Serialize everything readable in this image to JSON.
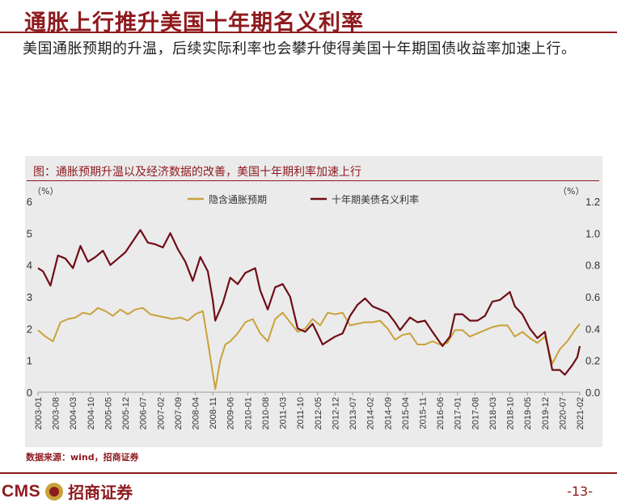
{
  "slide": {
    "title": "通胀上行推升美国十年期名义利率",
    "subtitle": "美国通胀预期的升温，后续实际利率也会攀升使得美国十年期国债收益率加速上行。",
    "source": "数据来源：wind，招商证券",
    "logo_text": "CMS",
    "logo_cn": "招商证券",
    "page_number": "-13-"
  },
  "colors": {
    "accent": "#8e1a1e",
    "breakeven": "#c9a23a",
    "yield": "#6e0d16",
    "panel": "#ebebeb"
  },
  "chart_data": {
    "type": "line",
    "title": "图：通胀预期升温以及经济数据的改善，美国十年期利率加速上行",
    "left_unit": "（%）",
    "right_unit": "（%）",
    "left_ylim": [
      0,
      6
    ],
    "right_ylim": [
      0,
      1.2
    ],
    "left_ticks": [
      "0",
      "1",
      "2",
      "3",
      "4",
      "5",
      "6"
    ],
    "right_ticks": [
      "0.0",
      "0.2",
      "0.4",
      "0.6",
      "0.8",
      "1.0",
      "1.2"
    ],
    "x_range": [
      "2003-01",
      "2021-02"
    ],
    "x_ticks": [
      "2003-01",
      "2003-08",
      "2004-03",
      "2004-10",
      "2005-05",
      "2005-12",
      "2006-07",
      "2007-02",
      "2007-09",
      "2008-04",
      "2008-11",
      "2009-06",
      "2010-01",
      "2010-08",
      "2011-03",
      "2011-10",
      "2012-05",
      "2012-12",
      "2013-07",
      "2014-02",
      "2014-09",
      "2015-04",
      "2015-11",
      "2016-06",
      "2017-01",
      "2017-08",
      "2018-03",
      "2018-10",
      "2019-05",
      "2019-12",
      "2020-07",
      "2021-02"
    ],
    "legend_position": "top",
    "series": [
      {
        "name": "隐含通胀预期",
        "axis": "left",
        "points": [
          [
            "2003-01",
            1.95
          ],
          [
            "2003-04",
            1.75
          ],
          [
            "2003-07",
            1.6
          ],
          [
            "2003-10",
            2.2
          ],
          [
            "2004-01",
            2.3
          ],
          [
            "2004-04",
            2.35
          ],
          [
            "2004-07",
            2.5
          ],
          [
            "2004-10",
            2.45
          ],
          [
            "2005-01",
            2.65
          ],
          [
            "2005-04",
            2.55
          ],
          [
            "2005-07",
            2.4
          ],
          [
            "2005-10",
            2.6
          ],
          [
            "2006-01",
            2.45
          ],
          [
            "2006-04",
            2.6
          ],
          [
            "2006-07",
            2.65
          ],
          [
            "2006-10",
            2.45
          ],
          [
            "2007-01",
            2.4
          ],
          [
            "2007-04",
            2.35
          ],
          [
            "2007-07",
            2.3
          ],
          [
            "2007-10",
            2.35
          ],
          [
            "2008-01",
            2.25
          ],
          [
            "2008-04",
            2.45
          ],
          [
            "2008-07",
            2.55
          ],
          [
            "2008-09",
            1.6
          ],
          [
            "2008-11",
            0.6
          ],
          [
            "2008-12",
            0.1
          ],
          [
            "2009-02",
            1.0
          ],
          [
            "2009-04",
            1.5
          ],
          [
            "2009-06",
            1.6
          ],
          [
            "2009-09",
            1.85
          ],
          [
            "2009-12",
            2.2
          ],
          [
            "2010-03",
            2.3
          ],
          [
            "2010-06",
            1.85
          ],
          [
            "2010-09",
            1.6
          ],
          [
            "2010-12",
            2.3
          ],
          [
            "2011-03",
            2.5
          ],
          [
            "2011-06",
            2.2
          ],
          [
            "2011-09",
            1.9
          ],
          [
            "2011-12",
            2.0
          ],
          [
            "2012-03",
            2.3
          ],
          [
            "2012-06",
            2.1
          ],
          [
            "2012-09",
            2.5
          ],
          [
            "2012-12",
            2.45
          ],
          [
            "2013-03",
            2.5
          ],
          [
            "2013-06",
            2.1
          ],
          [
            "2013-09",
            2.15
          ],
          [
            "2013-12",
            2.2
          ],
          [
            "2014-03",
            2.2
          ],
          [
            "2014-06",
            2.25
          ],
          [
            "2014-09",
            2.0
          ],
          [
            "2014-12",
            1.65
          ],
          [
            "2015-03",
            1.8
          ],
          [
            "2015-06",
            1.85
          ],
          [
            "2015-09",
            1.5
          ],
          [
            "2015-12",
            1.5
          ],
          [
            "2016-03",
            1.6
          ],
          [
            "2016-06",
            1.5
          ],
          [
            "2016-09",
            1.55
          ],
          [
            "2016-12",
            1.95
          ],
          [
            "2017-03",
            1.95
          ],
          [
            "2017-06",
            1.75
          ],
          [
            "2017-09",
            1.85
          ],
          [
            "2017-12",
            1.95
          ],
          [
            "2018-03",
            2.05
          ],
          [
            "2018-06",
            2.1
          ],
          [
            "2018-09",
            2.1
          ],
          [
            "2018-12",
            1.75
          ],
          [
            "2019-03",
            1.9
          ],
          [
            "2019-06",
            1.7
          ],
          [
            "2019-09",
            1.55
          ],
          [
            "2019-12",
            1.75
          ],
          [
            "2020-03",
            0.9
          ],
          [
            "2020-06",
            1.35
          ],
          [
            "2020-09",
            1.6
          ],
          [
            "2020-12",
            1.95
          ],
          [
            "2021-02",
            2.15
          ]
        ]
      },
      {
        "name": "十年期美债名义利率",
        "axis": "right",
        "points": [
          [
            "2003-01",
            0.78
          ],
          [
            "2003-03",
            0.76
          ],
          [
            "2003-06",
            0.67
          ],
          [
            "2003-09",
            0.86
          ],
          [
            "2003-12",
            0.84
          ],
          [
            "2004-03",
            0.78
          ],
          [
            "2004-06",
            0.92
          ],
          [
            "2004-09",
            0.82
          ],
          [
            "2004-12",
            0.85
          ],
          [
            "2005-03",
            0.89
          ],
          [
            "2005-06",
            0.8
          ],
          [
            "2005-09",
            0.84
          ],
          [
            "2005-12",
            0.88
          ],
          [
            "2006-03",
            0.95
          ],
          [
            "2006-06",
            1.02
          ],
          [
            "2006-09",
            0.94
          ],
          [
            "2006-12",
            0.93
          ],
          [
            "2007-03",
            0.91
          ],
          [
            "2007-06",
            1.0
          ],
          [
            "2007-09",
            0.9
          ],
          [
            "2007-12",
            0.82
          ],
          [
            "2008-03",
            0.7
          ],
          [
            "2008-06",
            0.85
          ],
          [
            "2008-09",
            0.76
          ],
          [
            "2008-11",
            0.58
          ],
          [
            "2008-12",
            0.45
          ],
          [
            "2009-03",
            0.56
          ],
          [
            "2009-06",
            0.72
          ],
          [
            "2009-09",
            0.68
          ],
          [
            "2009-12",
            0.75
          ],
          [
            "2010-04",
            0.78
          ],
          [
            "2010-06",
            0.64
          ],
          [
            "2010-09",
            0.52
          ],
          [
            "2010-12",
            0.66
          ],
          [
            "2011-03",
            0.68
          ],
          [
            "2011-06",
            0.6
          ],
          [
            "2011-09",
            0.4
          ],
          [
            "2011-12",
            0.38
          ],
          [
            "2012-03",
            0.43
          ],
          [
            "2012-07",
            0.3
          ],
          [
            "2012-10",
            0.33
          ],
          [
            "2012-12",
            0.35
          ],
          [
            "2013-03",
            0.37
          ],
          [
            "2013-06",
            0.48
          ],
          [
            "2013-09",
            0.55
          ],
          [
            "2013-12",
            0.59
          ],
          [
            "2014-03",
            0.54
          ],
          [
            "2014-06",
            0.52
          ],
          [
            "2014-09",
            0.5
          ],
          [
            "2014-12",
            0.44
          ],
          [
            "2015-02",
            0.39
          ],
          [
            "2015-06",
            0.47
          ],
          [
            "2015-09",
            0.44
          ],
          [
            "2015-12",
            0.45
          ],
          [
            "2016-03",
            0.38
          ],
          [
            "2016-07",
            0.29
          ],
          [
            "2016-10",
            0.35
          ],
          [
            "2016-12",
            0.49
          ],
          [
            "2017-03",
            0.49
          ],
          [
            "2017-06",
            0.45
          ],
          [
            "2017-09",
            0.45
          ],
          [
            "2017-12",
            0.48
          ],
          [
            "2018-03",
            0.57
          ],
          [
            "2018-06",
            0.58
          ],
          [
            "2018-10",
            0.63
          ],
          [
            "2018-12",
            0.54
          ],
          [
            "2019-03",
            0.49
          ],
          [
            "2019-06",
            0.4
          ],
          [
            "2019-09",
            0.34
          ],
          [
            "2019-12",
            0.38
          ],
          [
            "2020-03",
            0.14
          ],
          [
            "2020-06",
            0.14
          ],
          [
            "2020-08",
            0.11
          ],
          [
            "2020-11",
            0.17
          ],
          [
            "2021-01",
            0.22
          ],
          [
            "2021-02",
            0.29
          ]
        ]
      }
    ]
  }
}
